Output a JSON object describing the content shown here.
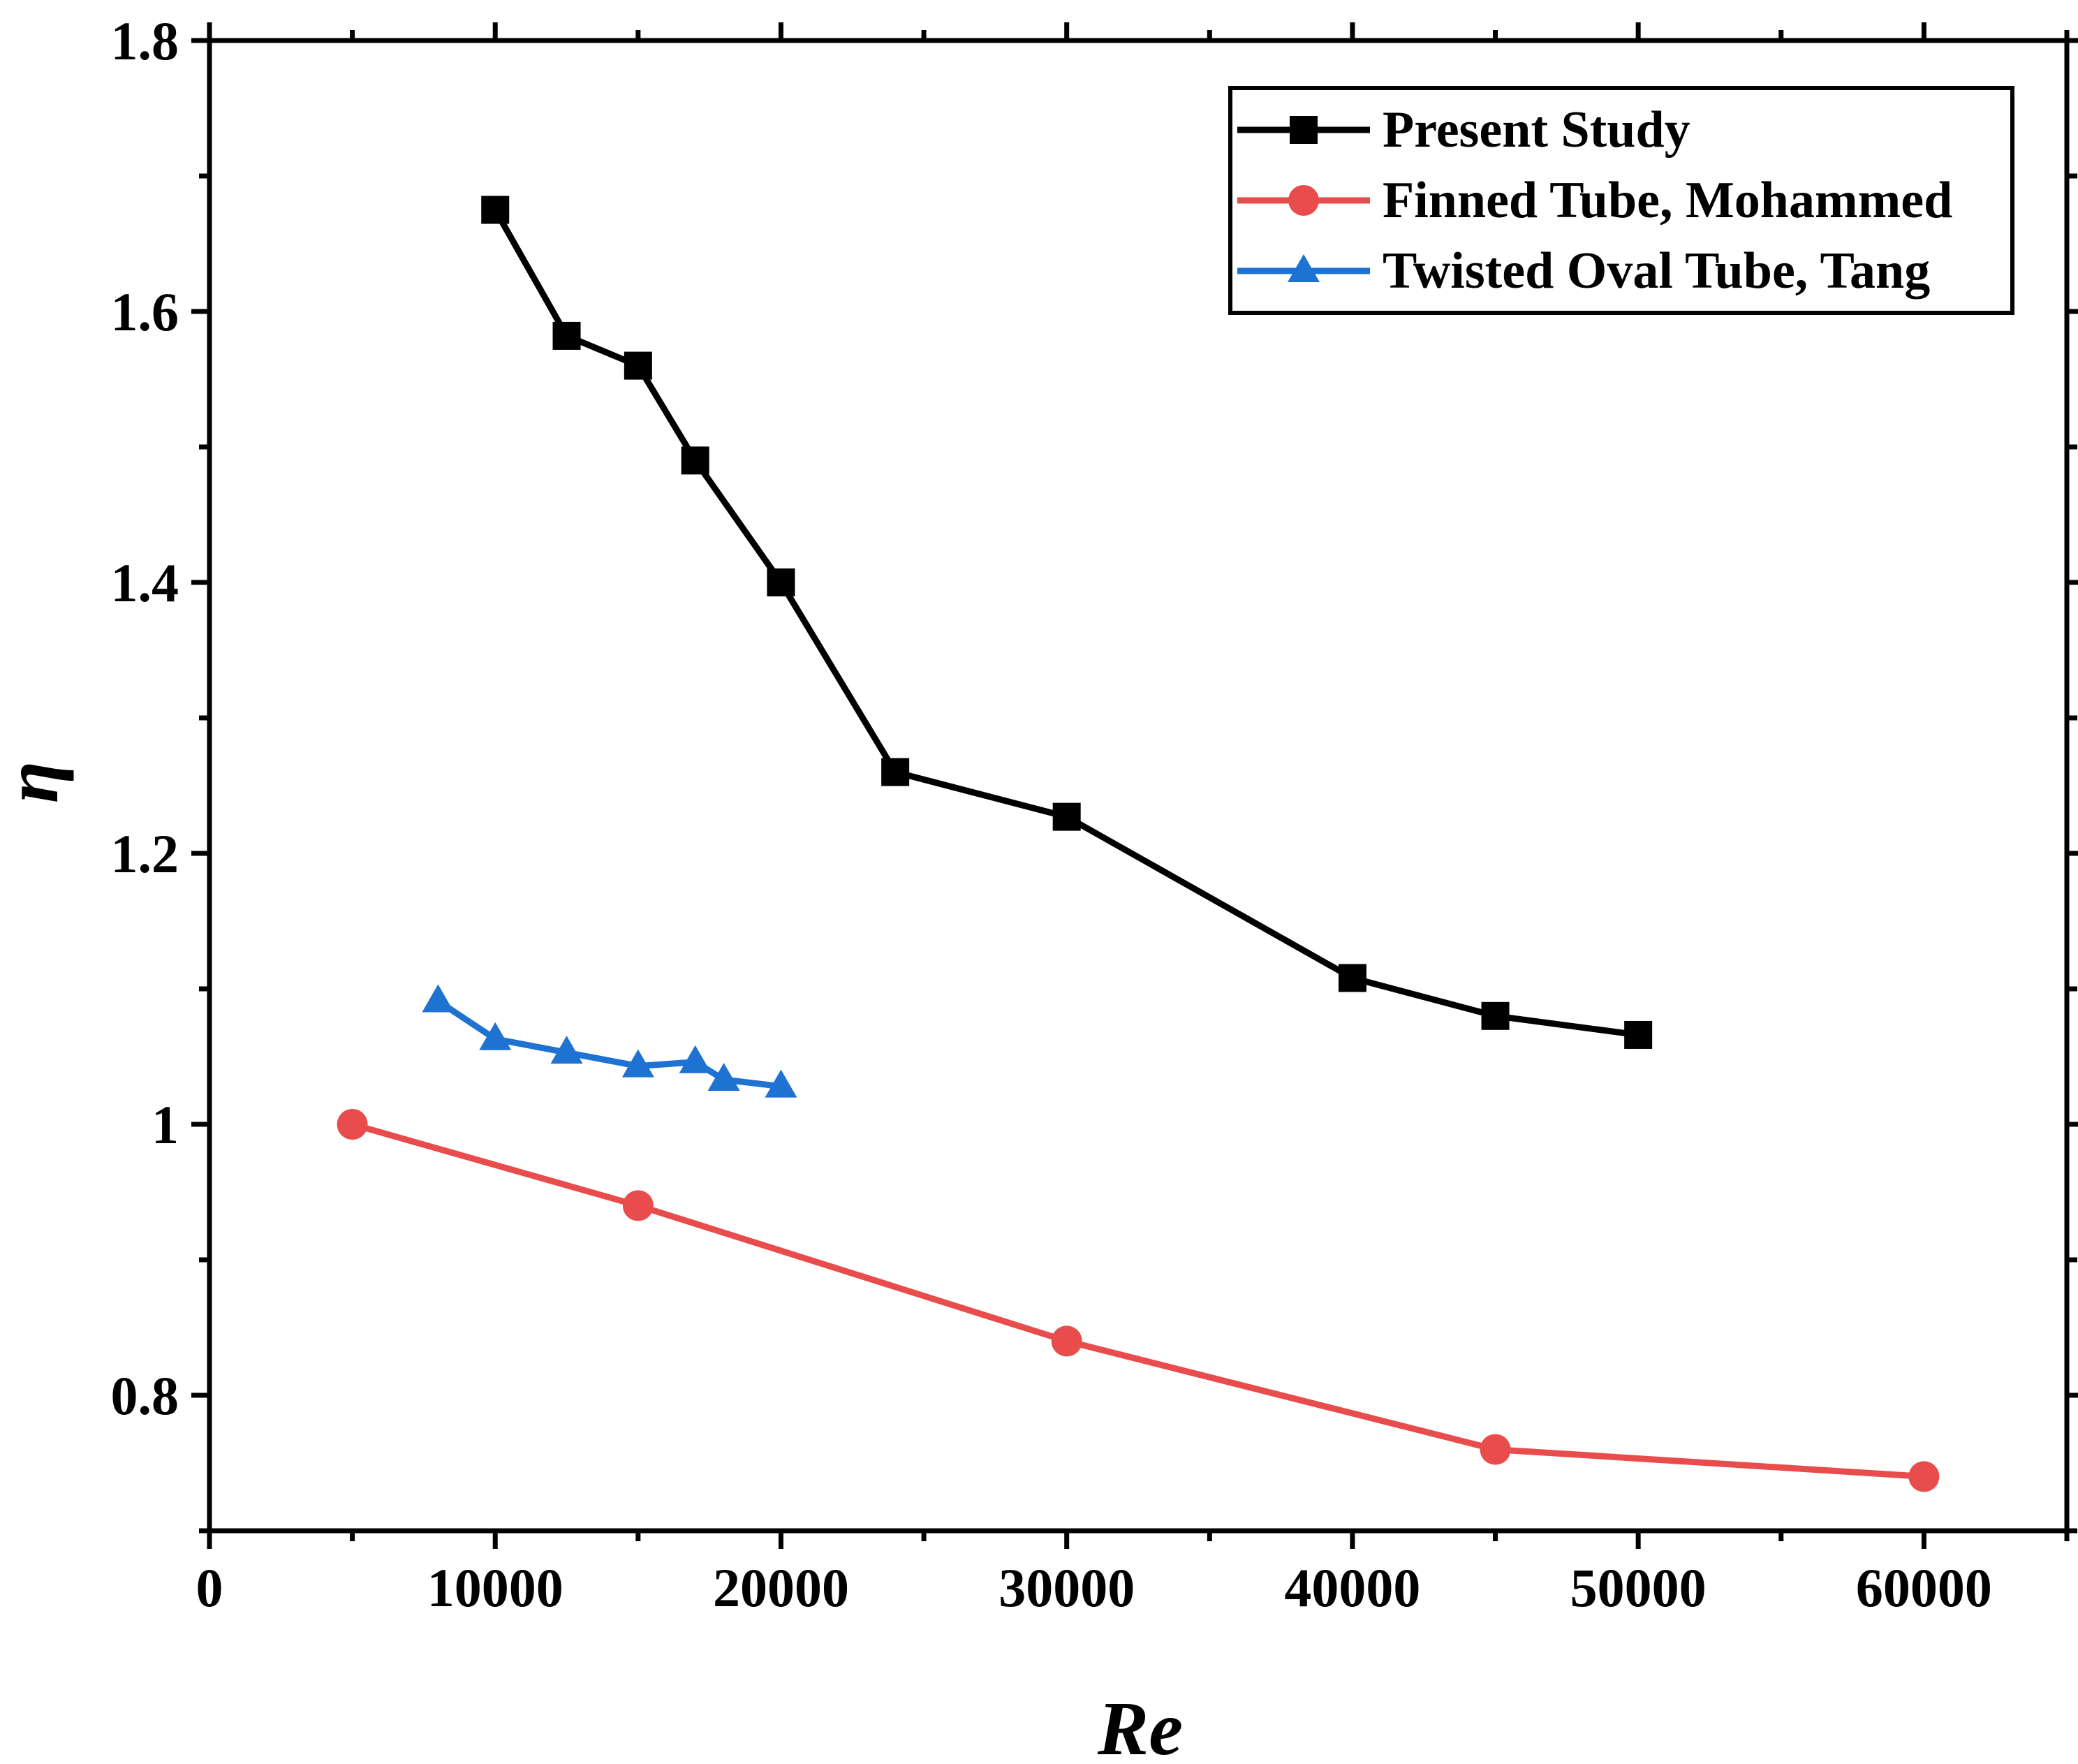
{
  "chart_data": {
    "type": "line",
    "title": "",
    "xlabel": "Re",
    "ylabel": "η",
    "xlim": [
      0,
      65000
    ],
    "ylim": [
      0.7,
      1.8
    ],
    "xticks": [
      0,
      10000,
      20000,
      30000,
      40000,
      50000,
      60000
    ],
    "xtick_labels": [
      "0",
      "10000",
      "20000",
      "30000",
      "40000",
      "50000",
      "60000"
    ],
    "yticks": [
      0.8,
      1.0,
      1.2,
      1.4,
      1.6,
      1.8
    ],
    "ytick_labels": [
      "0.8",
      "1",
      "1.2",
      "1.4",
      "1.6",
      "1.8"
    ],
    "grid": false,
    "legend_position": "top-right",
    "series": [
      {
        "name": "Present Study",
        "color": "#000000",
        "marker": "square",
        "x": [
          10000,
          12500,
          15000,
          17000,
          20000,
          24000,
          30000,
          40000,
          45000,
          50000
        ],
        "y": [
          1.675,
          1.582,
          1.56,
          1.49,
          1.4,
          1.26,
          1.227,
          1.108,
          1.08,
          1.066
        ]
      },
      {
        "name": "Finned Tube, Mohammed",
        "color": "#e84c4c",
        "marker": "circle",
        "x": [
          5000,
          15000,
          30000,
          45000,
          60000
        ],
        "y": [
          1.0,
          0.94,
          0.84,
          0.76,
          0.74
        ]
      },
      {
        "name": "Twisted Oval Tube, Tang",
        "color": "#1e72d2",
        "marker": "triangle",
        "x": [
          8000,
          10000,
          12500,
          15000,
          17000,
          18000,
          20000
        ],
        "y": [
          1.091,
          1.063,
          1.053,
          1.043,
          1.046,
          1.033,
          1.028
        ]
      }
    ]
  }
}
